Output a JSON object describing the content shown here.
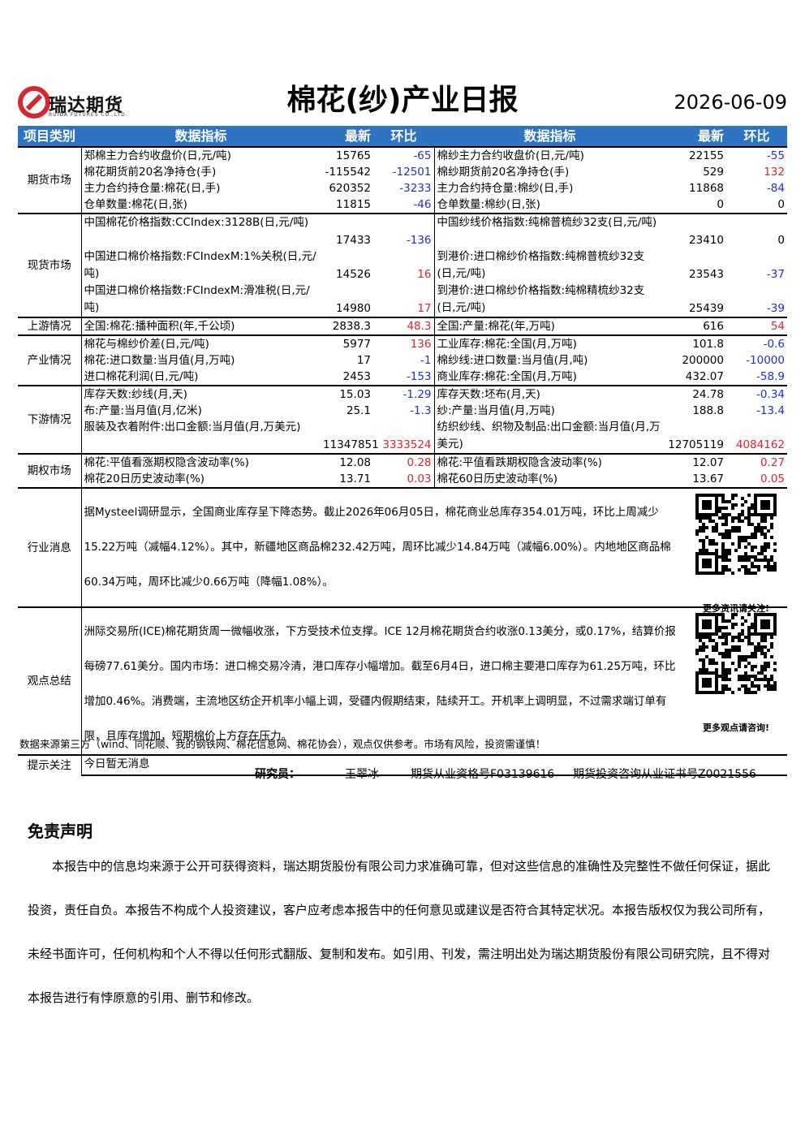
{
  "header": {
    "logo_name": "瑞达期货",
    "logo_sub": "RUIDA FUTURES CO.,LTD.",
    "title": "棉花(纱)产业日报",
    "date": "2026-06-09"
  },
  "table": {
    "columns": [
      "项目类别",
      "数据指标",
      "最新",
      "环比",
      "数据指标",
      "最新",
      "环比"
    ],
    "sections": [
      {
        "category": "期货市场",
        "tall": false,
        "rows": [
          [
            "郑棉主力合约收盘价(日,元/吨)",
            "15765",
            "-65",
            "棉纱主力合约收盘价(日,元/吨)",
            "22155",
            "-55"
          ],
          [
            "棉花期货前20名净持仓(手)",
            "-115542",
            "-12501",
            "棉纱期货前20名净持仓(手)",
            "529",
            "132"
          ],
          [
            "主力合约持仓量:棉花(日,手)",
            "620352",
            "-3233",
            "主力合约持仓量:棉纱(日,手)",
            "11868",
            "-84"
          ],
          [
            "仓单数量:棉花(日,张)",
            "11815",
            "-46",
            "仓单数量:棉纱(日,张)",
            "0",
            "0"
          ]
        ]
      },
      {
        "category": "现货市场",
        "tall": true,
        "rows": [
          [
            "中国棉花价格指数:CCIndex:3128B(日,元/吨)",
            "17433",
            "-136",
            "中国纱线价格指数:纯棉普梳纱32支(日,元/吨)",
            "23410",
            "0"
          ],
          [
            "中国进口棉价格指数:FCIndexM:1%关税(日,元/吨)",
            "14526",
            "16",
            "到港价:进口棉纱价格指数:纯棉普梳纱32支(日,元/吨)",
            "23543",
            "-37"
          ],
          [
            "中国进口棉价格指数:FCIndexM:滑准税(日,元/吨)",
            "14980",
            "17",
            "到港价:进口棉纱价格指数:纯棉精梳纱32支(日,元/吨)",
            "25439",
            "-39"
          ]
        ]
      },
      {
        "category": "上游情况",
        "tall": false,
        "rows": [
          [
            "全国:棉花:播种面积(年,千公顷)",
            "2838.3",
            "48.3",
            "全国:产量:棉花(年,万吨)",
            "616",
            "54"
          ]
        ]
      },
      {
        "category": "产业情况",
        "tall": false,
        "rows": [
          [
            "棉花与棉纱价差(日,元/吨)",
            "5977",
            "136",
            "工业库存:棉花:全国(月,万吨)",
            "101.8",
            "-0.6"
          ],
          [
            "棉花:进口数量:当月值(月,万吨)",
            "17",
            "-1",
            "棉纱线:进口数量:当月值(月,吨)",
            "200000",
            "-10000"
          ],
          [
            "进口棉花利润(日,元/吨)",
            "2453",
            "-153",
            "商业库存:棉花:全国(月,万吨)",
            "432.07",
            "-58.9"
          ]
        ]
      },
      {
        "category": "下游情况",
        "tall": false,
        "rows": [
          [
            "库存天数:纱线(月,天)",
            "15.03",
            "-1.29",
            "库存天数:坯布(月,天)",
            "24.78",
            "-0.34"
          ],
          [
            "布:产量:当月值(月,亿米)",
            "25.1",
            "-1.3",
            "纱:产量:当月值(月,万吨)",
            "188.8",
            "-13.4"
          ],
          [
            "服装及衣着附件:出口金额:当月值(月,万美元)",
            "11347851",
            "3333524",
            "纺织纱线、织物及制品:出口金额:当月值(月,万美元)",
            "12705119",
            "4084162"
          ]
        ]
      },
      {
        "category": "期权市场",
        "tall": false,
        "rows": [
          [
            "棉花:平值看涨期权隐含波动率(%)",
            "12.08",
            "0.28",
            "棉花:平值看跌期权隐含波动率(%)",
            "12.07",
            "0.27"
          ],
          [
            "棉花20日历史波动率(%)",
            "13.71",
            "0.03",
            "棉花60日历史波动率(%)",
            "13.67",
            "0.05"
          ]
        ]
      }
    ],
    "news": {
      "category": "行业消息",
      "text": "据Mysteel调研显示，全国商业库存呈下降态势。截止2026年06月05日，棉花商业总库存354.01万吨，环比上周减少15.22万吨（减幅4.12%）。其中，新疆地区商品棉232.42万吨，周环比减少14.84万吨（减幅6.00%）。内地地区商品棉60.34万吨，周环比减少0.66万吨（降幅1.08%）。",
      "qr_caption": "更多资讯请关注!"
    },
    "view": {
      "category": "观点总结",
      "text": "洲际交易所(ICE)棉花期货周一微幅收涨，下方受技术位支撑。ICE 12月棉花期货合约收涨0.13美分，或0.17%，结算价报每磅77.61美分。国内市场：进口棉交易冷清，港口库存小幅增加。截至6月4日，进口棉主要港口库存为61.25万吨，环比增加0.46%。消费端，主流地区纺企开机率小幅上调，受疆内假期结束，陆续开工。开机率上调明显，不过需求端订单有限，且库存增加，短期棉价上方存在压力。",
      "qr_caption": "更多观点请咨询!"
    },
    "tips": {
      "category": "提示关注",
      "text": "今日暂无消息"
    }
  },
  "footer": {
    "source": "数据来源第三方（wind、同花顺、我的钢铁网、棉花信息网、棉花协会），观点仅供参考。市场有风险，投资需谨慎！",
    "researcher_label": "研究员：",
    "researcher": "王翠冰",
    "license1": "期货从业资格号F03139616",
    "license2": "期货投资咨询从业证书号Z0021556"
  },
  "disclaimer": {
    "title": "免责声明",
    "text": "本报告中的信息均来源于公开可获得资料，瑞达期货股份有限公司力求准确可靠，但对这些信息的准确性及完整性不做任何保证，据此投资，责任自负。本报告不构成个人投资建议，客户应考虑本报告中的任何意见或建议是否符合其特定状况。本报告版权仅为我公司所有，未经书面许可，任何机构和个人不得以任何形式翻版、复制和发布。如引用、刊发，需注明出处为瑞达期货股份有限公司研究院，且不得对本报告进行有悖原意的引用、删节和修改。"
  }
}
